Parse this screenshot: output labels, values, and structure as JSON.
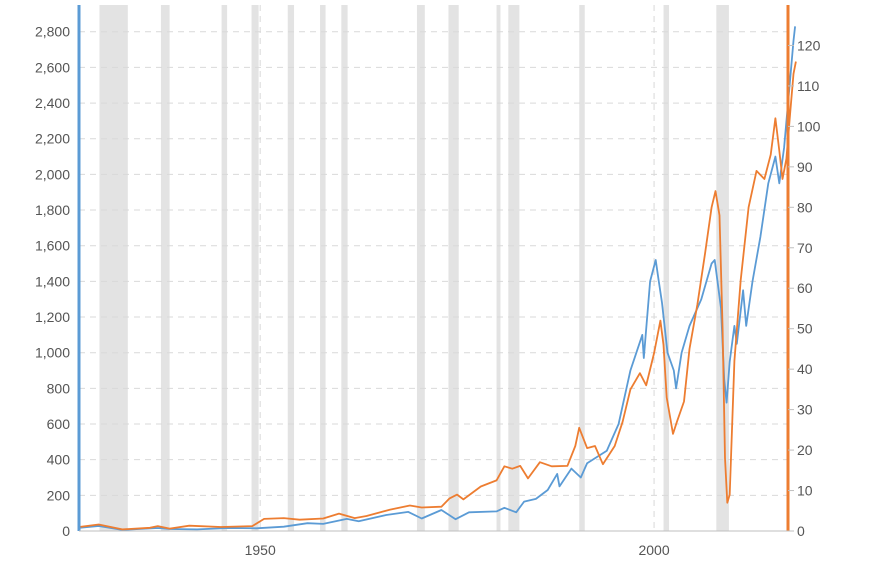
{
  "chart_data": {
    "type": "line",
    "title": "",
    "xlabel": "",
    "ylabel": "",
    "x_range": [
      1927,
      2017
    ],
    "x_ticks": [
      1950,
      2000
    ],
    "x_tick_labels": [
      "1950",
      "2000"
    ],
    "left_axis": {
      "range": [
        0,
        2950
      ],
      "ticks": [
        0,
        200,
        400,
        600,
        800,
        1000,
        1200,
        1400,
        1600,
        1800,
        2000,
        2200,
        2400,
        2600,
        2800
      ],
      "tick_labels": [
        "0",
        "200",
        "400",
        "600",
        "800",
        "1,000",
        "1,200",
        "1,400",
        "1,600",
        "1,800",
        "2,000",
        "2,200",
        "2,400",
        "2,600",
        "2,800"
      ],
      "color": "#5b9bd5"
    },
    "right_axis": {
      "range": [
        0,
        130
      ],
      "ticks": [
        0,
        10,
        20,
        30,
        40,
        50,
        60,
        70,
        80,
        90,
        100,
        110,
        120
      ],
      "tick_labels": [
        "0",
        "10",
        "20",
        "30",
        "40",
        "50",
        "60",
        "70",
        "80",
        "90",
        "100",
        "110",
        "120"
      ],
      "color": "#ed7d31"
    },
    "grid": true,
    "legend": "none",
    "recession_shading": [
      [
        1929.6,
        1933.2
      ],
      [
        1937.4,
        1938.5
      ],
      [
        1945.1,
        1945.8
      ],
      [
        1948.9,
        1949.8
      ],
      [
        1953.5,
        1954.3
      ],
      [
        1957.6,
        1958.3
      ],
      [
        1960.3,
        1961.1
      ],
      [
        1969.9,
        1970.9
      ],
      [
        1973.9,
        1975.2
      ],
      [
        1980.0,
        1980.5
      ],
      [
        1981.5,
        1982.9
      ],
      [
        1990.5,
        1991.2
      ],
      [
        2001.2,
        2001.9
      ],
      [
        2007.9,
        2009.5
      ]
    ],
    "series": [
      {
        "axis": "left",
        "color": "#5b9bd5",
        "points": [
          [
            1927,
            18
          ],
          [
            1929.5,
            28
          ],
          [
            1932.5,
            7
          ],
          [
            1937,
            17
          ],
          [
            1938.5,
            11
          ],
          [
            1942,
            9
          ],
          [
            1946,
            17
          ],
          [
            1949.5,
            15
          ],
          [
            1953,
            24
          ],
          [
            1956,
            44
          ],
          [
            1958,
            40
          ],
          [
            1961,
            68
          ],
          [
            1962.5,
            55
          ],
          [
            1966,
            90
          ],
          [
            1968.8,
            107
          ],
          [
            1970.5,
            70
          ],
          [
            1973,
            118
          ],
          [
            1974.8,
            66
          ],
          [
            1976.5,
            105
          ],
          [
            1980,
            110
          ],
          [
            1981,
            130
          ],
          [
            1982.5,
            105
          ],
          [
            1983.5,
            165
          ],
          [
            1985,
            180
          ],
          [
            1986.5,
            230
          ],
          [
            1987.7,
            320
          ],
          [
            1988,
            250
          ],
          [
            1989.5,
            350
          ],
          [
            1990.7,
            300
          ],
          [
            1991.5,
            380
          ],
          [
            1994,
            450
          ],
          [
            1995.5,
            600
          ],
          [
            1997,
            900
          ],
          [
            1998.5,
            1100
          ],
          [
            1998.7,
            970
          ],
          [
            1999.5,
            1400
          ],
          [
            2000.2,
            1520
          ],
          [
            2000.6,
            1400
          ],
          [
            2001,
            1280
          ],
          [
            2001.7,
            1000
          ],
          [
            2002.5,
            900
          ],
          [
            2002.8,
            800
          ],
          [
            2003.5,
            1000
          ],
          [
            2004.5,
            1150
          ],
          [
            2006,
            1300
          ],
          [
            2007.3,
            1500
          ],
          [
            2007.7,
            1520
          ],
          [
            2008.5,
            1250
          ],
          [
            2008.9,
            850
          ],
          [
            2009.2,
            720
          ],
          [
            2009.6,
            950
          ],
          [
            2010.2,
            1150
          ],
          [
            2010.5,
            1050
          ],
          [
            2011.3,
            1350
          ],
          [
            2011.7,
            1150
          ],
          [
            2012.5,
            1400
          ],
          [
            2013.5,
            1650
          ],
          [
            2014.5,
            1950
          ],
          [
            2015.4,
            2100
          ],
          [
            2015.9,
            1950
          ],
          [
            2016.5,
            2150
          ],
          [
            2017.3,
            2550
          ],
          [
            2017.7,
            2750
          ],
          [
            2017.9,
            2830
          ]
        ]
      },
      {
        "axis": "right",
        "color": "#ed7d31",
        "points": [
          [
            1927,
            1
          ],
          [
            1929.5,
            1.6
          ],
          [
            1932.5,
            0.4
          ],
          [
            1936,
            0.8
          ],
          [
            1937,
            1.2
          ],
          [
            1938.5,
            0.6
          ],
          [
            1941,
            1.3
          ],
          [
            1945,
            1
          ],
          [
            1949,
            1.2
          ],
          [
            1950.5,
            3
          ],
          [
            1953,
            3.2
          ],
          [
            1955,
            2.8
          ],
          [
            1958,
            3.1
          ],
          [
            1960,
            4.3
          ],
          [
            1962,
            3.2
          ],
          [
            1963.5,
            3.7
          ],
          [
            1966.5,
            5.3
          ],
          [
            1969,
            6.3
          ],
          [
            1970.5,
            5.8
          ],
          [
            1973,
            6
          ],
          [
            1974,
            8
          ],
          [
            1975,
            9
          ],
          [
            1975.8,
            7.8
          ],
          [
            1978,
            11
          ],
          [
            1980,
            12.5
          ],
          [
            1981,
            16
          ],
          [
            1982,
            15.4
          ],
          [
            1983,
            16.1
          ],
          [
            1984,
            13
          ],
          [
            1985.5,
            17
          ],
          [
            1987,
            16
          ],
          [
            1989,
            16.1
          ],
          [
            1990,
            21
          ],
          [
            1990.5,
            25.5
          ],
          [
            1991.5,
            20.5
          ],
          [
            1992.5,
            21
          ],
          [
            1993.5,
            16.5
          ],
          [
            1995,
            21
          ],
          [
            1996,
            27
          ],
          [
            1997,
            35
          ],
          [
            1998.2,
            39
          ],
          [
            1999,
            36
          ],
          [
            2000,
            44
          ],
          [
            2000.8,
            52
          ],
          [
            2001.2,
            46
          ],
          [
            2001.6,
            33
          ],
          [
            2002.4,
            24
          ],
          [
            2002.9,
            27
          ],
          [
            2003.8,
            32
          ],
          [
            2004.5,
            45
          ],
          [
            2005.5,
            56
          ],
          [
            2006.5,
            69
          ],
          [
            2007.3,
            80
          ],
          [
            2007.8,
            84
          ],
          [
            2008.3,
            78
          ],
          [
            2008.7,
            50
          ],
          [
            2009,
            18
          ],
          [
            2009.3,
            7
          ],
          [
            2009.6,
            9
          ],
          [
            2010.2,
            42
          ],
          [
            2011,
            62
          ],
          [
            2012,
            80
          ],
          [
            2013,
            89
          ],
          [
            2014,
            87
          ],
          [
            2014.8,
            93
          ],
          [
            2015.4,
            102
          ],
          [
            2015.9,
            94
          ],
          [
            2016.3,
            87
          ],
          [
            2016.8,
            92
          ],
          [
            2017.3,
            104
          ],
          [
            2017.7,
            113
          ],
          [
            2018,
            116
          ]
        ]
      }
    ]
  }
}
